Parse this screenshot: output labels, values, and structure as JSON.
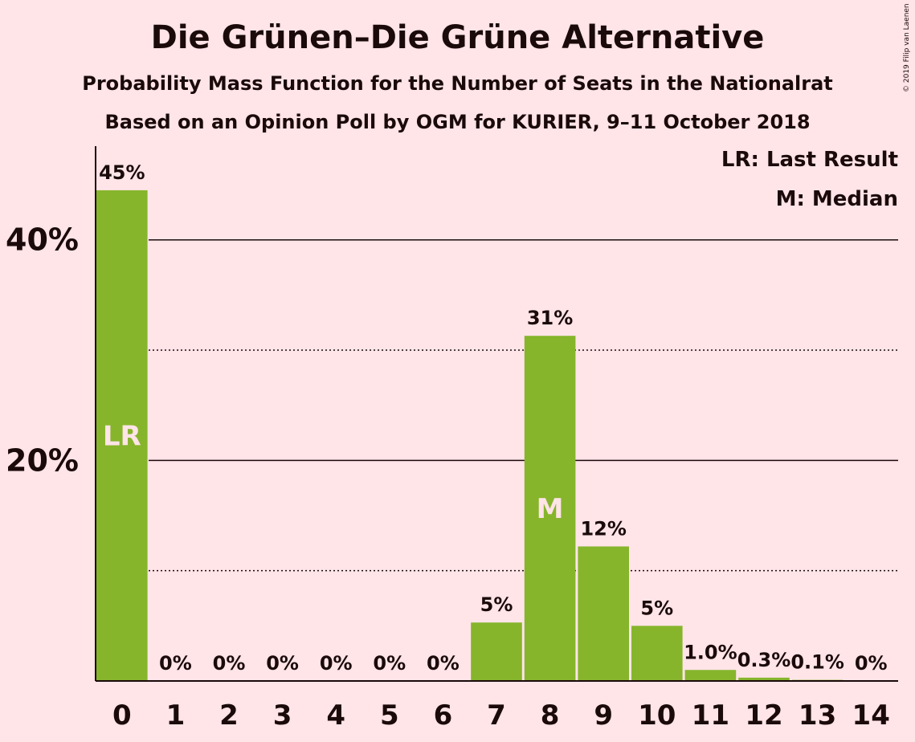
{
  "header": {
    "title": "Die Grünen–Die Grüne Alternative",
    "subtitle": "Probability Mass Function for the Number of Seats in the Nationalrat",
    "poll_info": "Based on an Opinion Poll by OGM for KURIER, 9–11 October 2018"
  },
  "legend": {
    "last_result": "LR: Last Result",
    "median": "M: Median"
  },
  "copyright": "© 2019 Filip van Laenen",
  "colors": {
    "background": "#FFE4E8",
    "bar": "#86B52C",
    "marker_text": "#FFE4E8",
    "text": "#1a0a0a"
  },
  "chart_data": {
    "type": "bar",
    "categories": [
      "0",
      "1",
      "2",
      "3",
      "4",
      "5",
      "6",
      "7",
      "8",
      "9",
      "10",
      "11",
      "12",
      "13",
      "14"
    ],
    "values": [
      44.5,
      0,
      0,
      0,
      0,
      0,
      0,
      5.3,
      31.3,
      12.2,
      5.0,
      1.0,
      0.3,
      0.1,
      0
    ],
    "labels": [
      "45%",
      "0%",
      "0%",
      "0%",
      "0%",
      "0%",
      "0%",
      "5%",
      "31%",
      "12%",
      "5%",
      "1.0%",
      "0.3%",
      "0.1%",
      "0%"
    ],
    "markers": [
      {
        "category": "0",
        "text": "LR"
      },
      {
        "category": "8",
        "text": "M"
      }
    ],
    "ylim": [
      0,
      48.5
    ],
    "yticks": [
      {
        "value": 20,
        "label": "20%"
      },
      {
        "value": 40,
        "label": "40%"
      }
    ],
    "minor_gridlines": [
      10,
      30
    ],
    "grid": true,
    "legend_position": "top-right"
  }
}
